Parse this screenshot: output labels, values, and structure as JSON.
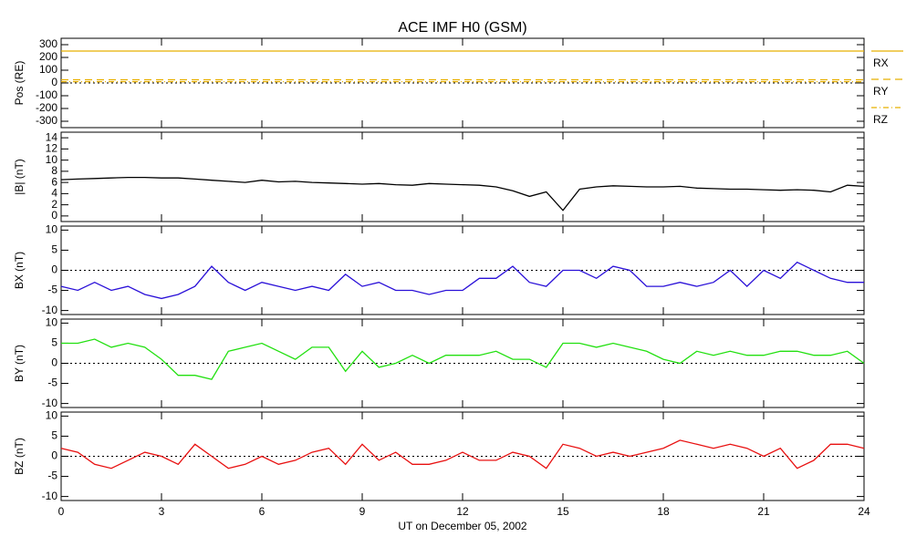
{
  "chart_data": [
    {
      "type": "line",
      "title": "ACE IMF H0 (GSM)",
      "ylabel": "Pos (RE)",
      "xlim": [
        0,
        24
      ],
      "xticks": [
        0,
        3,
        6,
        9,
        12,
        15,
        18,
        21,
        24
      ],
      "ylim": [
        -350,
        350
      ],
      "yticks": [
        300,
        200,
        100,
        0,
        -100,
        -200,
        -300
      ],
      "reference_line": 0,
      "x": [
        0,
        24
      ],
      "series": [
        {
          "name": "RX",
          "color": "#e8b000",
          "line_style": "solid",
          "values": [
            250,
            250
          ]
        },
        {
          "name": "RY",
          "color": "#e8b000",
          "line_style": "dashed",
          "values": [
            25,
            25
          ]
        },
        {
          "name": "RZ",
          "color": "#e8b000",
          "line_style": "dashdot",
          "values": [
            10,
            10
          ]
        }
      ]
    },
    {
      "type": "line",
      "ylabel": "|B| (nT)",
      "xlim": [
        0,
        24
      ],
      "xticks": [
        0,
        3,
        6,
        9,
        12,
        15,
        18,
        21,
        24
      ],
      "ylim": [
        -1,
        15
      ],
      "yticks": [
        14,
        12,
        10,
        8,
        6,
        4,
        2,
        0
      ],
      "x": [
        0,
        0.5,
        1,
        1.5,
        2,
        2.5,
        3,
        3.5,
        4,
        4.5,
        5,
        5.5,
        6,
        6.5,
        7,
        7.5,
        8,
        8.5,
        9,
        9.5,
        10,
        10.5,
        11,
        11.5,
        12,
        12.5,
        13,
        13.5,
        14,
        14.5,
        15,
        15.5,
        16,
        16.5,
        17,
        17.5,
        18,
        18.5,
        19,
        19.5,
        20,
        20.5,
        21,
        21.5,
        22,
        22.5,
        23,
        23.5,
        24
      ],
      "series": [
        {
          "name": "|B|",
          "color": "#000000",
          "line_style": "solid",
          "values": [
            6.5,
            6.6,
            6.7,
            6.8,
            6.9,
            6.9,
            6.8,
            6.8,
            6.6,
            6.4,
            6.2,
            6.0,
            6.4,
            6.1,
            6.2,
            6.0,
            5.9,
            5.8,
            5.7,
            5.8,
            5.6,
            5.5,
            5.8,
            5.7,
            5.6,
            5.5,
            5.2,
            4.5,
            3.5,
            4.3,
            1.0,
            4.8,
            5.2,
            5.4,
            5.3,
            5.2,
            5.2,
            5.3,
            5.0,
            4.9,
            4.8,
            4.8,
            4.7,
            4.6,
            4.7,
            4.6,
            4.3,
            5.5,
            5.3
          ]
        }
      ]
    },
    {
      "type": "line",
      "ylabel": "BX (nT)",
      "xlim": [
        0,
        24
      ],
      "xticks": [
        0,
        3,
        6,
        9,
        12,
        15,
        18,
        21,
        24
      ],
      "ylim": [
        -11,
        11
      ],
      "yticks": [
        10,
        5,
        0,
        -5,
        -10
      ],
      "reference_line": 0,
      "x": [
        0,
        0.5,
        1,
        1.5,
        2,
        2.5,
        3,
        3.5,
        4,
        4.5,
        5,
        5.5,
        6,
        6.5,
        7,
        7.5,
        8,
        8.5,
        9,
        9.5,
        10,
        10.5,
        11,
        11.5,
        12,
        12.5,
        13,
        13.5,
        14,
        14.5,
        15,
        15.5,
        16,
        16.5,
        17,
        17.5,
        18,
        18.5,
        19,
        19.5,
        20,
        20.5,
        21,
        21.5,
        22,
        22.5,
        23,
        23.5,
        24
      ],
      "series": [
        {
          "name": "BX",
          "color": "#2a10d8",
          "line_style": "solid",
          "values": [
            -4,
            -5,
            -3,
            -5,
            -4,
            -6,
            -7,
            -6,
            -4,
            1,
            -3,
            -5,
            -3,
            -4,
            -5,
            -4,
            -5,
            -1,
            -4,
            -3,
            -5,
            -5,
            -6,
            -5,
            -5,
            -2,
            -2,
            1,
            -3,
            -4,
            0,
            0,
            -2,
            1,
            0,
            -4,
            -4,
            -3,
            -4,
            -3,
            0,
            -4,
            0,
            -2,
            2,
            0,
            -2,
            -3,
            -3
          ]
        }
      ]
    },
    {
      "type": "line",
      "ylabel": "BY (nT)",
      "xlim": [
        0,
        24
      ],
      "xticks": [
        0,
        3,
        6,
        9,
        12,
        15,
        18,
        21,
        24
      ],
      "ylim": [
        -11,
        11
      ],
      "yticks": [
        10,
        5,
        0,
        -5,
        -10
      ],
      "reference_line": 0,
      "x": [
        0,
        0.5,
        1,
        1.5,
        2,
        2.5,
        3,
        3.5,
        4,
        4.5,
        5,
        5.5,
        6,
        6.5,
        7,
        7.5,
        8,
        8.5,
        9,
        9.5,
        10,
        10.5,
        11,
        11.5,
        12,
        12.5,
        13,
        13.5,
        14,
        14.5,
        15,
        15.5,
        16,
        16.5,
        17,
        17.5,
        18,
        18.5,
        19,
        19.5,
        20,
        20.5,
        21,
        21.5,
        22,
        22.5,
        23,
        23.5,
        24
      ],
      "series": [
        {
          "name": "BY",
          "color": "#22e010",
          "line_style": "solid",
          "values": [
            5,
            5,
            6,
            4,
            5,
            4,
            1,
            -3,
            -3,
            -4,
            3,
            4,
            5,
            3,
            1,
            4,
            4,
            -2,
            3,
            -1,
            0,
            2,
            0,
            2,
            2,
            2,
            3,
            1,
            1,
            -1,
            5,
            5,
            4,
            5,
            4,
            3,
            1,
            0,
            3,
            2,
            3,
            2,
            2,
            3,
            3,
            2,
            2,
            3,
            0
          ]
        }
      ]
    },
    {
      "type": "line",
      "ylabel": "BZ (nT)",
      "xlabel": "UT on December 05, 2002",
      "xlim": [
        0,
        24
      ],
      "xticks": [
        0,
        3,
        6,
        9,
        12,
        15,
        18,
        21,
        24
      ],
      "ylim": [
        -11,
        11
      ],
      "yticks": [
        10,
        5,
        0,
        -5,
        -10
      ],
      "reference_line": 0,
      "x": [
        0,
        0.5,
        1,
        1.5,
        2,
        2.5,
        3,
        3.5,
        4,
        4.5,
        5,
        5.5,
        6,
        6.5,
        7,
        7.5,
        8,
        8.5,
        9,
        9.5,
        10,
        10.5,
        11,
        11.5,
        12,
        12.5,
        13,
        13.5,
        14,
        14.5,
        15,
        15.5,
        16,
        16.5,
        17,
        17.5,
        18,
        18.5,
        19,
        19.5,
        20,
        20.5,
        21,
        21.5,
        22,
        22.5,
        23,
        23.5,
        24
      ],
      "series": [
        {
          "name": "BZ",
          "color": "#e81010",
          "line_style": "solid",
          "values": [
            2,
            1,
            -2,
            -3,
            -1,
            1,
            0,
            -2,
            3,
            0,
            -3,
            -2,
            0,
            -2,
            -1,
            1,
            2,
            -2,
            3,
            -1,
            1,
            -2,
            -2,
            -1,
            1,
            -1,
            -1,
            1,
            0,
            -3,
            3,
            2,
            0,
            1,
            0,
            1,
            2,
            4,
            3,
            2,
            3,
            2,
            0,
            2,
            -3,
            -1,
            3,
            3,
            2
          ]
        }
      ]
    }
  ]
}
